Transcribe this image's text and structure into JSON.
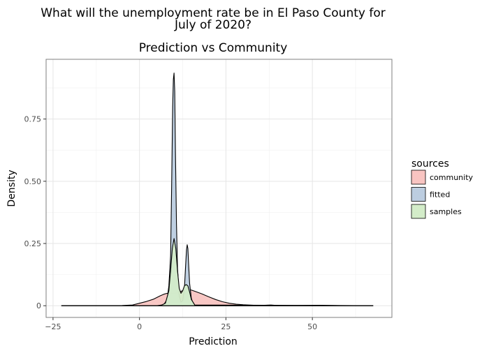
{
  "chart_data": {
    "type": "area",
    "title_lines": [
      "What will the unemployment rate be in El Paso County for",
      "July of 2020?"
    ],
    "subtitle": "Prediction vs Community",
    "xlabel": "Prediction",
    "ylabel": "Density",
    "xlim": [
      -27,
      73
    ],
    "ylim": [
      -0.047,
      0.99
    ],
    "xticks": [
      -25,
      0,
      25,
      50
    ],
    "xtick_labels": [
      "−25",
      "0",
      "25",
      "50"
    ],
    "yticks": [
      0,
      0.25,
      0.5,
      0.75
    ],
    "ytick_labels": [
      "0",
      "0.25",
      "0.50",
      "0.75"
    ],
    "grid": true,
    "legend": {
      "title": "sources",
      "position": "right"
    },
    "series": [
      {
        "name": "community",
        "color": "#f8c4c1",
        "x": [
          -22.5,
          -5,
          -2,
          0,
          2,
          4,
          6,
          7,
          8,
          9,
          10,
          11,
          12,
          13,
          14,
          15,
          16,
          18,
          20,
          22,
          24,
          26,
          28,
          30,
          33,
          36,
          38,
          40,
          45,
          52,
          58,
          62,
          65,
          67.5
        ],
        "y": [
          0,
          0.001,
          0.003,
          0.01,
          0.017,
          0.026,
          0.04,
          0.046,
          0.05,
          0.051,
          0.049,
          0.052,
          0.058,
          0.063,
          0.065,
          0.063,
          0.058,
          0.048,
          0.036,
          0.025,
          0.016,
          0.01,
          0.006,
          0.004,
          0.002,
          0.002,
          0.003,
          0.001,
          0.001,
          0.002,
          0.001,
          0.0005,
          0.0002,
          0
        ]
      },
      {
        "name": "fitted",
        "color": "#bccde0",
        "x": [
          -22.5,
          5,
          7,
          8,
          8.5,
          9,
          9.3,
          9.6,
          9.8,
          10,
          10.2,
          10.4,
          10.7,
          11,
          11.5,
          12,
          12.5,
          13,
          13.3,
          13.6,
          13.8,
          14,
          14.2,
          14.5,
          15,
          15.5,
          16,
          18,
          67.5
        ],
        "y": [
          0,
          0,
          0.004,
          0.025,
          0.08,
          0.2,
          0.48,
          0.8,
          0.91,
          0.935,
          0.86,
          0.62,
          0.33,
          0.15,
          0.04,
          0.015,
          0.02,
          0.07,
          0.15,
          0.225,
          0.245,
          0.23,
          0.17,
          0.09,
          0.03,
          0.008,
          0.002,
          0,
          0
        ]
      },
      {
        "name": "samples",
        "color": "#d3ecc9",
        "x": [
          -22.5,
          6,
          7.5,
          8.5,
          9,
          9.5,
          10,
          10.5,
          11,
          11.5,
          12,
          12.5,
          13,
          13.5,
          14,
          14.5,
          15,
          16,
          67.5
        ],
        "y": [
          0,
          0,
          0.01,
          0.06,
          0.14,
          0.23,
          0.27,
          0.23,
          0.14,
          0.07,
          0.05,
          0.06,
          0.08,
          0.085,
          0.08,
          0.055,
          0.025,
          0.003,
          0
        ]
      }
    ]
  }
}
